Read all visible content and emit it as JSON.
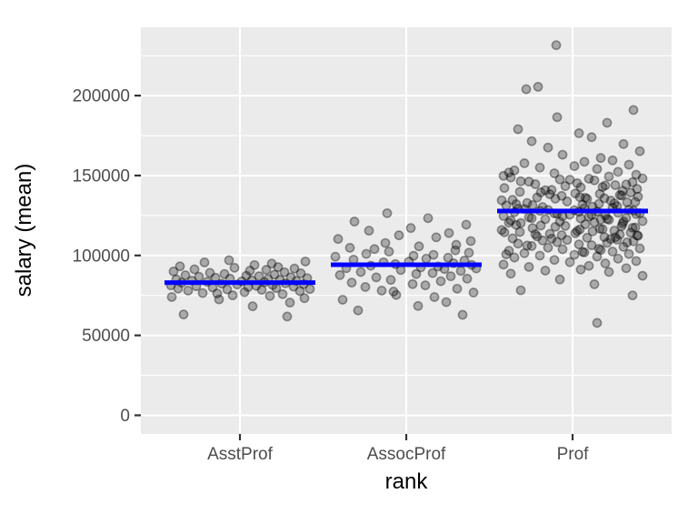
{
  "figure": {
    "background_color": "#FFFFFF"
  },
  "chart_data": {
    "type": "scatter",
    "subtype": "jittered-strip-plot-with-mean-bars",
    "title": "",
    "xlabel": "rank",
    "ylabel": "salary (mean)",
    "x_categories": [
      "AsstProf",
      "AssocProf",
      "Prof"
    ],
    "y_ticks": [
      0,
      50000,
      100000,
      150000,
      200000
    ],
    "y_tick_labels": [
      "0",
      "50000",
      "100000",
      "150000",
      "200000"
    ],
    "y_minor_ticks": [
      25000,
      75000,
      125000,
      175000,
      225000
    ],
    "ylim": [
      -12000,
      243500
    ],
    "grid": "on",
    "legend_position": "none",
    "panel_background_color": "#EBEBEB",
    "grid_color": "#FFFFFF",
    "tick_mark_color": "#333333",
    "axis_text_color": "#4D4D4D",
    "point_color": "#000000",
    "point_fill_opacity": 0.28,
    "point_stroke_opacity": 0.38,
    "mean_bar_color": "#0000FF",
    "means": [
      83000,
      94200,
      127800
    ],
    "jitter_sequence": [
      -62,
      14,
      55,
      -23,
      71,
      -75,
      33,
      -8,
      47,
      -41,
      5,
      66,
      -57,
      24,
      -14,
      77,
      -68,
      40,
      -30,
      9,
      59,
      -48,
      18,
      -76,
      36,
      -3,
      70,
      -20,
      50,
      -64,
      27,
      -36,
      2,
      62,
      -53,
      13,
      44,
      -70,
      31,
      -11,
      74,
      -27,
      56,
      -45,
      21,
      7,
      -60,
      38,
      -17,
      67,
      -33,
      49,
      -73,
      11,
      29,
      -50,
      60,
      -6,
      42,
      -66,
      16,
      35,
      -39,
      72,
      -12,
      52,
      -25,
      3,
      64,
      -58,
      22,
      46,
      -78,
      8,
      30,
      -44,
      69,
      -19,
      54,
      -35
    ],
    "series": [
      {
        "name": "AsstProf",
        "jitter_start": 0,
        "salaries": [
          63100,
          68200,
          70500,
          72500,
          73266,
          74000,
          74692,
          75044,
          75800,
          76500,
          77100,
          77700,
          78000,
          78500,
          78785,
          79000,
          79300,
          79600,
          80000,
          80225,
          80500,
          80750,
          81000,
          81285,
          81500,
          81800,
          82100,
          82379,
          82600,
          82900,
          83200,
          83500,
          83800,
          84050,
          84240,
          84500,
          84716,
          85000,
          85270,
          85500,
          85800,
          86100,
          86373,
          86700,
          87000,
          87300,
          87600,
          88000,
          88400,
          88825,
          89100,
          89516,
          90000,
          90450,
          91000,
          91300,
          91800,
          92300,
          92700,
          93200,
          94000,
          94867,
          95642,
          96200,
          97032,
          61800,
          76200
        ],
        "outliers": []
      },
      {
        "name": "AssocProf",
        "jitter_start": 33,
        "salaries": [
          62884,
          65600,
          68400,
          70800,
          72300,
          73940,
          75300,
          76800,
          78000,
          79200,
          80300,
          81285,
          82100,
          83000,
          83900,
          84700,
          85500,
          86300,
          87000,
          87700,
          88400,
          89000,
          89650,
          90300,
          90900,
          91500,
          92000,
          92550,
          93100,
          93600,
          94100,
          94600,
          95100,
          95700,
          96200,
          96800,
          97400,
          98000,
          98600,
          99200,
          99800,
          100400,
          101000,
          101700,
          102400,
          103200,
          104000,
          104800,
          105700,
          106700,
          107800,
          109000,
          110300,
          111350,
          112600,
          114000,
          115500,
          117150,
          119250,
          121200,
          123300,
          77400,
          91900
        ],
        "outliers": [
          [
            -21,
            126431
          ]
        ]
      },
      {
        "name": "Prof",
        "jitter_start": 11,
        "salaries": [
          75000,
          78200,
          82000,
          85000,
          87300,
          88600,
          89700,
          90500,
          91200,
          92000,
          92800,
          93500,
          94300,
          95000,
          95800,
          96500,
          97200,
          98000,
          98700,
          99300,
          99900,
          100400,
          100900,
          101400,
          101900,
          102400,
          102900,
          103400,
          103900,
          104400,
          104900,
          105400,
          105900,
          106400,
          106900,
          107400,
          107900,
          108400,
          108900,
          109400,
          109900,
          100700,
          102200,
          104200,
          106200,
          108200,
          109700,
          110300,
          110700,
          111100,
          111500,
          111900,
          112300,
          112700,
          113100,
          113500,
          113900,
          114300,
          114700,
          115100,
          115500,
          115900,
          116300,
          116700,
          117100,
          117500,
          117900,
          118300,
          118700,
          119100,
          119500,
          119900,
          110500,
          112500,
          114500,
          116500,
          118500,
          111300,
          113300,
          115300,
          117300,
          120300,
          120700,
          121100,
          121500,
          121900,
          122300,
          122700,
          123100,
          123500,
          123900,
          124300,
          124700,
          125100,
          125500,
          125900,
          126300,
          126700,
          127100,
          127500,
          127900,
          128300,
          128700,
          129100,
          129500,
          129900,
          120500,
          122500,
          124500,
          126500,
          128500,
          121300,
          123300,
          125300,
          127300,
          129300,
          122900,
          126100,
          128100,
          130300,
          130800,
          131300,
          131800,
          132300,
          132800,
          133300,
          133800,
          134300,
          134800,
          135300,
          135800,
          136300,
          136800,
          137300,
          137800,
          138300,
          138800,
          139300,
          139800,
          130500,
          132500,
          134500,
          136500,
          138500,
          131500,
          133500,
          135500,
          137500,
          139500,
          132100,
          136100,
          140400,
          141000,
          141600,
          142200,
          142800,
          143400,
          144000,
          144600,
          145200,
          145800,
          146400,
          147000,
          147600,
          148200,
          148800,
          149400,
          140800,
          142600,
          144400,
          146200,
          148000,
          149800,
          143800,
          147400,
          150500,
          151400,
          152300,
          153200,
          154100,
          155000,
          155900,
          156800,
          157700,
          158600,
          159500,
          151900,
          161000,
          163000,
          165200,
          167500,
          169700,
          171500,
          174000,
          176500,
          179000,
          183000,
          186500,
          191000
        ],
        "outliers": [
          [
            -18,
            231545
          ],
          [
            -51,
            204000
          ],
          [
            -38,
            205500
          ],
          [
            27,
            57800
          ]
        ]
      }
    ]
  }
}
